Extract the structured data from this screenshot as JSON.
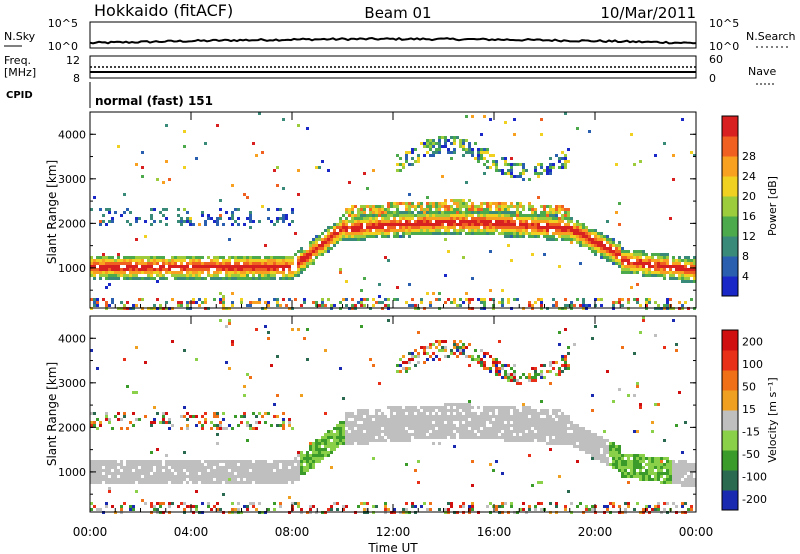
{
  "header": {
    "station": "Hokkaido (fitACF)",
    "beam": "Beam 01",
    "date": "10/Mar/2011"
  },
  "strips": {
    "nsky_label": "N.Sky",
    "nsearch_label": "N.Search",
    "nsky_ticks": [
      "10^5",
      "10^0"
    ],
    "nsearch_ticks": [
      "10^5",
      "10^0"
    ],
    "freq_label": "Freq.",
    "freq_unit": "[MHz]",
    "freq_ticks": [
      "12",
      "8"
    ],
    "nave_label": "Nave",
    "nave_ticks": [
      "60",
      "0"
    ],
    "cpid_label": "CPID",
    "cpid_value": "normal (fast) 151"
  },
  "chart_data": [
    {
      "type": "heatmap",
      "name": "power",
      "ylabel": "Slant Range [km]",
      "xlabel": "",
      "ylim": [
        100,
        4500
      ],
      "yticks": [
        "1000",
        "2000",
        "3000",
        "4000"
      ],
      "colorbar_label": "Power [dB]",
      "colorbar_ticks": [
        "4",
        "8",
        "12",
        "16",
        "20",
        "24",
        "28"
      ],
      "colors": [
        "#1a28c8",
        "#2a5fb0",
        "#3a8a7a",
        "#4caa4c",
        "#9ccc3c",
        "#f0d020",
        "#f8a020",
        "#f06020",
        "#d82020"
      ]
    },
    {
      "type": "heatmap",
      "name": "velocity",
      "ylabel": "Slant Range [km]",
      "xlabel": "Time UT",
      "ylim": [
        100,
        4500
      ],
      "yticks": [
        "1000",
        "2000",
        "3000",
        "4000"
      ],
      "xticks": [
        "00:00",
        "04:00",
        "08:00",
        "12:00",
        "16:00",
        "20:00",
        "00:00"
      ],
      "colorbar_label": "Velocity [m s⁻¹]",
      "colorbar_ticks": [
        "200",
        "100",
        "50",
        "15",
        "-15",
        "-50",
        "-100",
        "-200"
      ],
      "colors": [
        "#1a2ab0",
        "#2a6a50",
        "#3a9a2a",
        "#8ad048",
        "#bfbfbf",
        "#f0a020",
        "#f07018",
        "#e83018",
        "#d01010"
      ]
    }
  ]
}
